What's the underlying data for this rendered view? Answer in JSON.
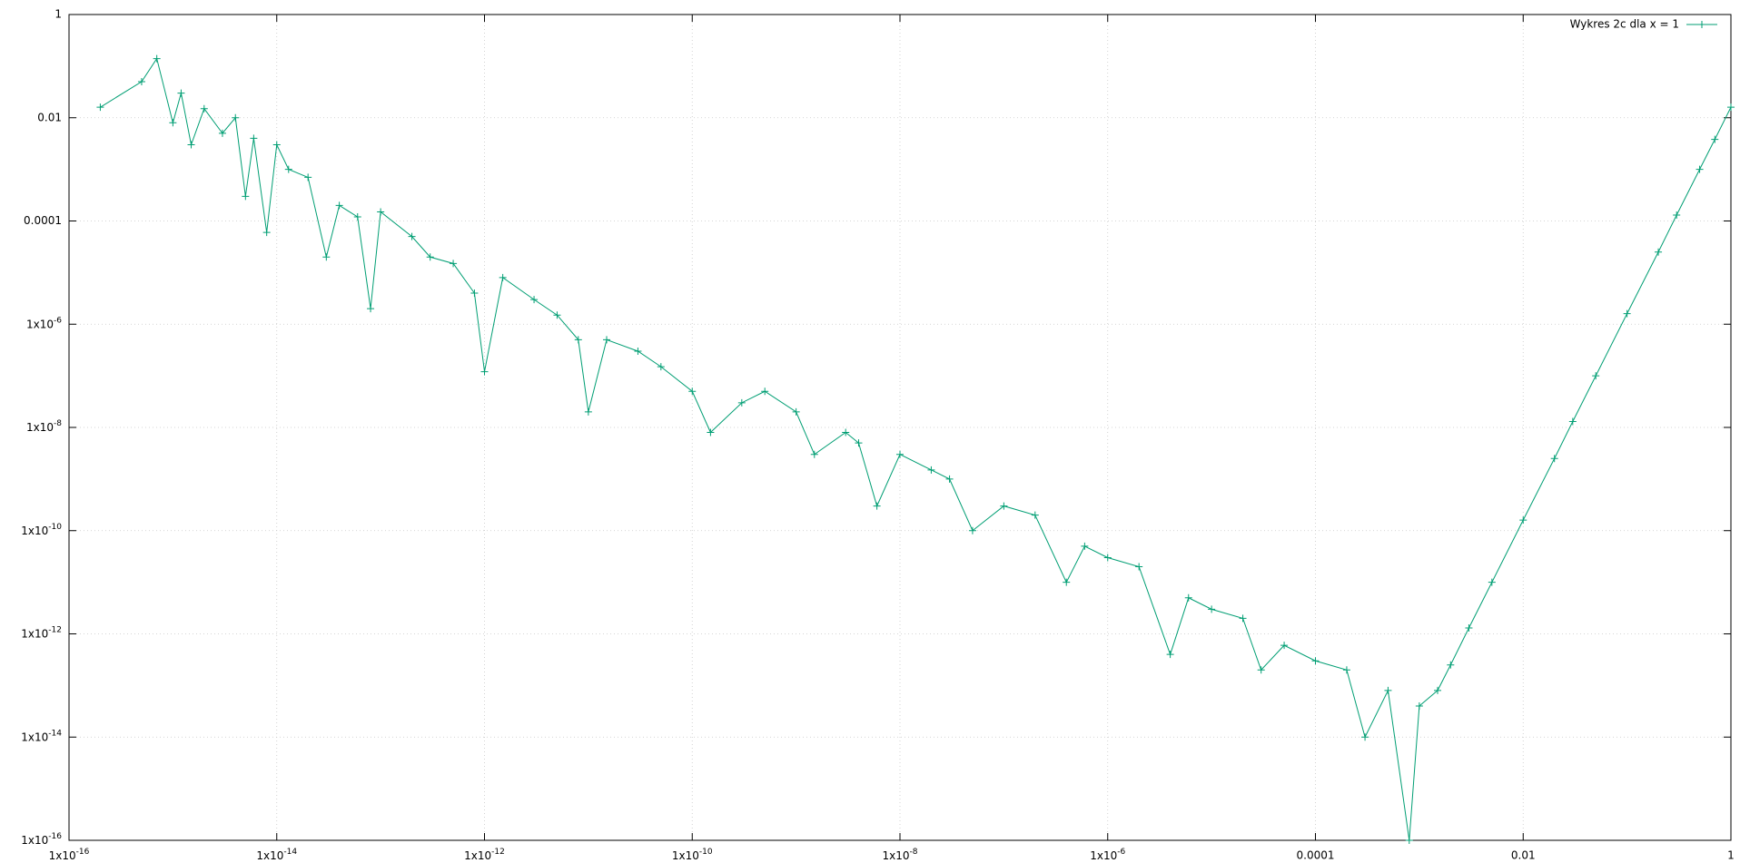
{
  "chart_data": {
    "type": "line",
    "xscale": "log",
    "yscale": "log",
    "xlim": [
      1e-16,
      1
    ],
    "ylim": [
      1e-16,
      1
    ],
    "xticks": [
      {
        "value": 1e-16,
        "label": "1x10",
        "exponent": "-16"
      },
      {
        "value": 1e-14,
        "label": "1x10",
        "exponent": "-14"
      },
      {
        "value": 1e-12,
        "label": "1x10",
        "exponent": "-12"
      },
      {
        "value": 1e-10,
        "label": "1x10",
        "exponent": "-10"
      },
      {
        "value": 1e-08,
        "label": "1x10",
        "exponent": "-8"
      },
      {
        "value": 1e-06,
        "label": "1x10",
        "exponent": "-6"
      },
      0.0001,
      0.01,
      1
    ],
    "yticks": [
      {
        "value": 1e-16,
        "label": "1x10",
        "exponent": "-16"
      },
      {
        "value": 1e-14,
        "label": "1x10",
        "exponent": "-14"
      },
      {
        "value": 1e-12,
        "label": "1x10",
        "exponent": "-12"
      },
      {
        "value": 1e-10,
        "label": "1x10",
        "exponent": "-10"
      },
      {
        "value": 1e-08,
        "label": "1x10",
        "exponent": "-8"
      },
      {
        "value": 1e-06,
        "label": "1x10",
        "exponent": "-6"
      },
      0.0001,
      0.01,
      1
    ],
    "grid": true,
    "legend": "top-right",
    "x": [
      2e-16,
      5e-16,
      7e-16,
      1e-15,
      1.2e-15,
      1.5e-15,
      2e-15,
      3e-15,
      4e-15,
      5e-15,
      6e-15,
      8e-15,
      1e-14,
      1.3e-14,
      2e-14,
      3e-14,
      4e-14,
      6e-14,
      8e-14,
      1e-13,
      2e-13,
      3e-13,
      5e-13,
      8e-13,
      1e-12,
      1.5e-12,
      3e-12,
      5e-12,
      8e-12,
      1e-11,
      1.5e-11,
      3e-11,
      5e-11,
      1e-10,
      1.5e-10,
      3e-10,
      5e-10,
      1e-09,
      1.5e-09,
      3e-09,
      4e-09,
      6e-09,
      1e-08,
      2e-08,
      3e-08,
      5e-08,
      1e-07,
      2e-07,
      4e-07,
      6e-07,
      1e-06,
      2e-06,
      4e-06,
      6e-06,
      1e-05,
      2e-05,
      3e-05,
      5e-05,
      0.0001,
      0.0002,
      0.0003,
      0.0005,
      0.0008,
      0.001,
      0.0015,
      0.002,
      0.003,
      0.005,
      0.01,
      0.02,
      0.03,
      0.05,
      0.1,
      0.2,
      0.3,
      0.5,
      0.7,
      1
    ],
    "series": [
      {
        "name": "Wykres 2c dla x = 1",
        "color": "#009e73",
        "values": [
          0.016,
          0.05,
          0.14,
          0.008,
          0.03,
          0.003,
          0.015,
          0.005,
          0.01,
          0.0003,
          0.004,
          6e-05,
          0.003,
          0.001,
          0.0007,
          2e-05,
          0.0002,
          0.00012,
          2e-06,
          0.00015,
          5e-05,
          2e-05,
          1.5e-05,
          4e-06,
          1.2e-07,
          8e-06,
          3e-06,
          1.5e-06,
          5e-07,
          2e-08,
          5e-07,
          3e-07,
          1.5e-07,
          5e-08,
          8e-09,
          3e-08,
          5e-08,
          2e-08,
          3e-09,
          8e-09,
          5e-09,
          3e-10,
          3e-09,
          1.5e-09,
          1e-09,
          1e-10,
          3e-10,
          2e-10,
          1e-11,
          5e-11,
          3e-11,
          2e-11,
          4e-13,
          5e-12,
          3e-12,
          2e-12,
          2e-13,
          6e-13,
          3e-13,
          2e-13,
          1e-14,
          8e-14,
          1e-16,
          4e-14,
          8e-14,
          2.5e-13,
          1.3e-12,
          1e-11,
          1.6e-10,
          2.5e-09,
          1.3e-08,
          1e-07,
          1.6e-06,
          2.5e-05,
          0.00013,
          0.001,
          0.0038,
          0.016
        ]
      }
    ]
  }
}
